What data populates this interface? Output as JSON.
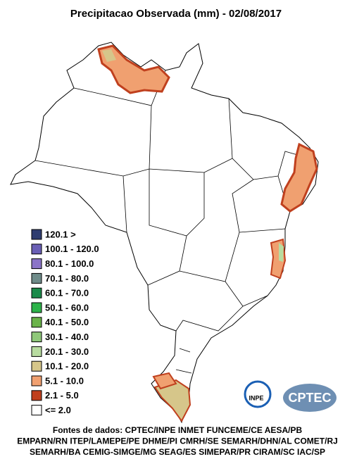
{
  "title": "Precipitacao Observada (mm) - 02/08/2017",
  "legend": {
    "items": [
      {
        "label": "120.1 >",
        "color": "#2f3d70"
      },
      {
        "label": "100.1 - 120.0",
        "color": "#6a5fb5"
      },
      {
        "label": "80.1 - 100.0",
        "color": "#8b74c8"
      },
      {
        "label": "70.1 - 80.0",
        "color": "#6f8c8a"
      },
      {
        "label": "60.1 - 70.0",
        "color": "#1b8a4a"
      },
      {
        "label": "50.1 - 60.0",
        "color": "#2db34a"
      },
      {
        "label": "40.1 - 50.0",
        "color": "#6ab34a"
      },
      {
        "label": "30.1 - 40.0",
        "color": "#8fc87a"
      },
      {
        "label": "20.1 - 30.0",
        "color": "#b8dca0"
      },
      {
        "label": "10.1 - 20.0",
        "color": "#d6c68a"
      },
      {
        "label": "5.1 - 10.0",
        "color": "#f0a070"
      },
      {
        "label": "2.1 - 5.0",
        "color": "#c0401e"
      },
      {
        "label": "<= 2.0",
        "color": "#ffffff"
      }
    ]
  },
  "logos": {
    "inpe": "INPE",
    "cptec": "CPTEC"
  },
  "sources": [
    "Fontes de dados: CPTEC/INPE INMET FUNCEME/CE AESA/PB",
    "EMPARN/RN ITEP/LAMEPE/PE DHME/PI CMRH/SE SEMARH/DHN/AL COMET/RJ",
    "SEMARH/BA CEMIG-SIMGE/MG SEAG/ES SIMEPAR/PR CIRAM/SC IAC/SP"
  ]
}
